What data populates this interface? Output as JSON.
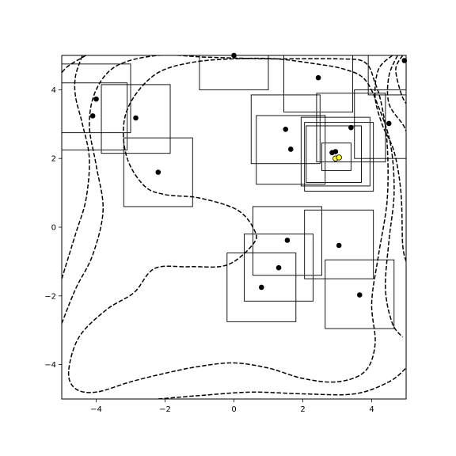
{
  "chart_data": {
    "type": "scatter",
    "title": "",
    "xlabel": "",
    "ylabel": "",
    "xlim": [
      -5,
      5
    ],
    "ylim": [
      -5,
      5
    ],
    "grid": false,
    "legend": "none",
    "xticks": [
      {
        "value": -4,
        "label": "−4"
      },
      {
        "value": -2,
        "label": "−2"
      },
      {
        "value": 0,
        "label": "0"
      },
      {
        "value": 2,
        "label": "2"
      },
      {
        "value": 4,
        "label": "4"
      }
    ],
    "yticks": [
      {
        "value": -4,
        "label": "−4"
      },
      {
        "value": -2,
        "label": "−2"
      },
      {
        "value": 0,
        "label": "0"
      },
      {
        "value": 2,
        "label": "2"
      },
      {
        "value": 4,
        "label": "4"
      }
    ],
    "points": [
      {
        "x": 0.0,
        "y": 5.0
      },
      {
        "x": -4.0,
        "y": 3.73
      },
      {
        "x": -4.1,
        "y": 3.24
      },
      {
        "x": -2.85,
        "y": 3.18
      },
      {
        "x": -2.2,
        "y": 1.6
      },
      {
        "x": 2.45,
        "y": 4.35
      },
      {
        "x": 4.95,
        "y": 4.85
      },
      {
        "x": 1.5,
        "y": 2.85
      },
      {
        "x": 1.65,
        "y": 2.27
      },
      {
        "x": 3.4,
        "y": 2.9
      },
      {
        "x": 4.5,
        "y": 3.02
      },
      {
        "x": 2.85,
        "y": 2.17
      },
      {
        "x": 2.95,
        "y": 2.2
      },
      {
        "x": 1.55,
        "y": -0.38
      },
      {
        "x": 1.3,
        "y": -1.18
      },
      {
        "x": 0.8,
        "y": -1.75
      },
      {
        "x": 3.05,
        "y": -0.53
      },
      {
        "x": 3.65,
        "y": -1.97
      }
    ],
    "highlight_points": [
      {
        "x": 2.95,
        "y": 2.0,
        "color": "#ffff33"
      },
      {
        "x": 3.05,
        "y": 2.03,
        "color": "#ffff33"
      }
    ],
    "boxes": [
      {
        "x0": -5.0,
        "x1": -3.0,
        "y0": 2.75,
        "y1": 4.75
      },
      {
        "x0": -5.0,
        "x1": -3.1,
        "y0": 2.25,
        "y1": 4.2
      },
      {
        "x0": -3.85,
        "x1": -1.85,
        "y0": 2.15,
        "y1": 4.15
      },
      {
        "x0": -3.2,
        "x1": -1.2,
        "y0": 0.6,
        "y1": 2.6
      },
      {
        "x0": -1.0,
        "x1": 1.0,
        "y0": 4.0,
        "y1": 5.0
      },
      {
        "x0": 1.45,
        "x1": 3.45,
        "y0": 3.35,
        "y1": 5.0
      },
      {
        "x0": 3.9,
        "x1": 5.0,
        "y0": 3.85,
        "y1": 5.0
      },
      {
        "x0": 0.5,
        "x1": 2.5,
        "y0": 1.85,
        "y1": 3.85
      },
      {
        "x0": 0.65,
        "x1": 2.65,
        "y0": 1.25,
        "y1": 3.25
      },
      {
        "x0": 2.4,
        "x1": 4.4,
        "y0": 1.9,
        "y1": 3.9
      },
      {
        "x0": 1.95,
        "x1": 3.95,
        "y0": 1.2,
        "y1": 3.2
      },
      {
        "x0": 2.05,
        "x1": 4.05,
        "y0": 1.05,
        "y1": 3.05
      },
      {
        "x0": 2.1,
        "x1": 3.7,
        "y0": 1.3,
        "y1": 2.95
      },
      {
        "x0": 2.55,
        "x1": 3.4,
        "y0": 1.65,
        "y1": 2.45
      },
      {
        "x0": 3.5,
        "x1": 5.0,
        "y0": 2.0,
        "y1": 4.0
      },
      {
        "x0": 0.55,
        "x1": 2.55,
        "y0": -1.4,
        "y1": 0.6
      },
      {
        "x0": 0.3,
        "x1": 2.3,
        "y0": -2.15,
        "y1": -0.2
      },
      {
        "x0": -0.2,
        "x1": 1.8,
        "y0": -2.75,
        "y1": -0.75
      },
      {
        "x0": 2.05,
        "x1": 4.05,
        "y0": -1.5,
        "y1": 0.5
      },
      {
        "x0": 2.65,
        "x1": 4.65,
        "y0": -2.95,
        "y1": -0.95
      }
    ],
    "contours": [
      [
        [
          -5.0,
          -1.5
        ],
        [
          -4.6,
          -0.2
        ],
        [
          -4.3,
          0.8
        ],
        [
          -4.2,
          2.0
        ],
        [
          -4.4,
          3.0
        ],
        [
          -4.6,
          3.8
        ],
        [
          -4.6,
          4.4
        ],
        [
          -4.4,
          5.0
        ]
      ],
      [
        [
          -5.0,
          -2.8
        ],
        [
          -4.6,
          -1.8
        ],
        [
          -4.1,
          -0.8
        ],
        [
          -3.8,
          0.5
        ],
        [
          -4.0,
          1.8
        ],
        [
          -4.2,
          3.0
        ],
        [
          -4.0,
          4.0
        ],
        [
          -3.4,
          4.7
        ],
        [
          -2.2,
          5.0
        ],
        [
          -0.8,
          4.95
        ],
        [
          1.0,
          4.9
        ],
        [
          3.0,
          4.9
        ],
        [
          3.8,
          4.8
        ],
        [
          4.1,
          4.2
        ],
        [
          4.3,
          3.5
        ],
        [
          4.45,
          2.4
        ],
        [
          4.45,
          0.8
        ],
        [
          4.2,
          -0.8
        ],
        [
          4.0,
          -2.2
        ],
        [
          4.1,
          -3.4
        ],
        [
          3.8,
          -4.2
        ],
        [
          3.0,
          -4.5
        ],
        [
          2.0,
          -4.4
        ],
        [
          1.0,
          -4.1
        ],
        [
          0.0,
          -3.95
        ],
        [
          -1.0,
          -4.05
        ],
        [
          -2.0,
          -4.25
        ],
        [
          -3.0,
          -4.5
        ],
        [
          -4.0,
          -4.8
        ],
        [
          -4.6,
          -4.7
        ],
        [
          -4.8,
          -4.2
        ],
        [
          -4.5,
          -3.2
        ],
        [
          -3.7,
          -2.4
        ],
        [
          -2.9,
          -1.9
        ],
        [
          -2.3,
          -1.2
        ],
        [
          -1.3,
          -1.15
        ],
        [
          -0.2,
          -1.1
        ],
        [
          0.55,
          -0.5
        ],
        [
          0.6,
          -0.1
        ],
        [
          0.1,
          0.5
        ],
        [
          -1.0,
          0.85
        ],
        [
          -2.0,
          0.95
        ],
        [
          -2.6,
          1.2
        ],
        [
          -3.1,
          2.0
        ],
        [
          -3.2,
          3.0
        ],
        [
          -2.9,
          3.8
        ],
        [
          -2.2,
          4.5
        ],
        [
          -1.2,
          4.8
        ],
        [
          0.0,
          4.9
        ],
        [
          1.2,
          4.9
        ],
        [
          2.4,
          4.75
        ],
        [
          3.2,
          4.6
        ],
        [
          3.8,
          4.3
        ],
        [
          4.2,
          3.5
        ],
        [
          4.55,
          2.4
        ],
        [
          4.65,
          1.0
        ],
        [
          4.5,
          -0.4
        ],
        [
          4.4,
          -1.8
        ],
        [
          4.6,
          -2.8
        ],
        [
          4.9,
          -3.2
        ]
      ],
      [
        [
          4.75,
          5.0
        ],
        [
          4.5,
          4.4
        ],
        [
          4.5,
          3.6
        ],
        [
          4.9,
          3.0
        ],
        [
          5.0,
          2.8
        ]
      ],
      [
        [
          4.9,
          5.0
        ],
        [
          4.7,
          4.6
        ],
        [
          4.85,
          3.9
        ],
        [
          5.0,
          3.6
        ]
      ],
      [
        [
          4.6,
          5.0
        ],
        [
          4.2,
          4.6
        ],
        [
          4.1,
          3.8
        ],
        [
          4.3,
          3.0
        ],
        [
          4.65,
          2.2
        ],
        [
          4.85,
          1.0
        ],
        [
          4.9,
          -0.5
        ],
        [
          5.0,
          -1.0
        ]
      ],
      [
        [
          -2.2,
          -5.0
        ],
        [
          -1.0,
          -4.9
        ],
        [
          0.5,
          -4.8
        ],
        [
          2.0,
          -4.85
        ],
        [
          3.5,
          -4.85
        ],
        [
          4.5,
          -4.5
        ],
        [
          5.0,
          -4.1
        ]
      ],
      [
        [
          -4.3,
          5.0
        ],
        [
          -4.8,
          4.7
        ],
        [
          -5.0,
          4.5
        ]
      ]
    ]
  }
}
